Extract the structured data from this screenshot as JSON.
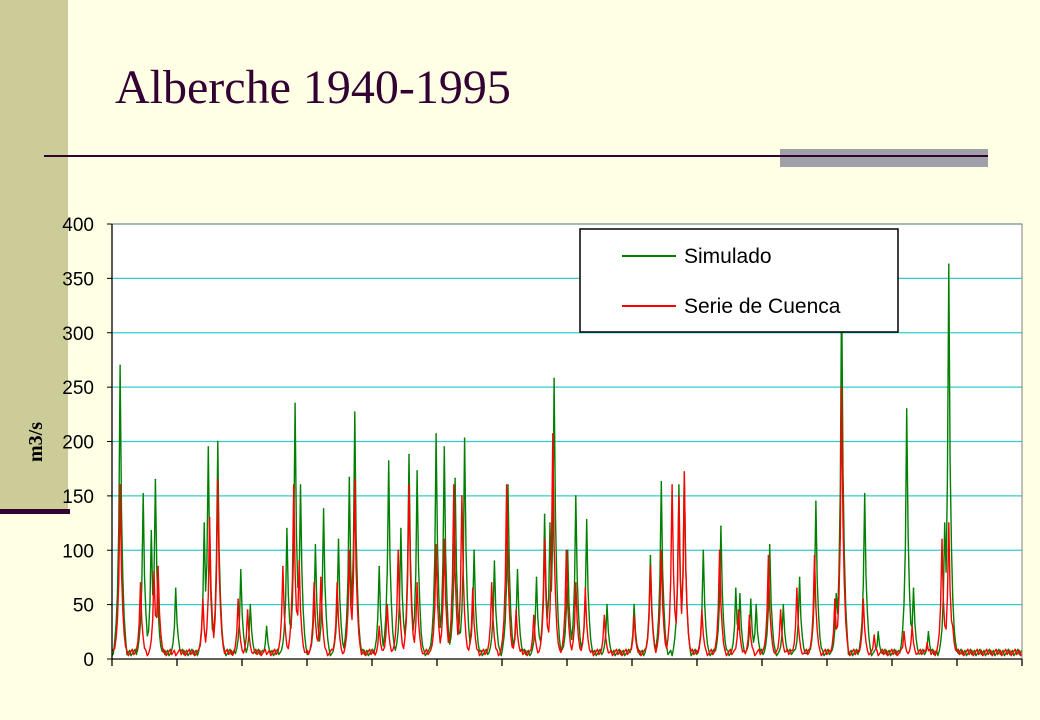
{
  "slide": {
    "title": "Alberche 1940-1995",
    "colors": {
      "background": "#ffffe5",
      "side_band": "#cccc99",
      "title": "#330033",
      "accent_bar": "#a0a0a8"
    }
  },
  "chart_data": {
    "type": "line",
    "title": "Alberche 1940-1995",
    "xlabel": "",
    "ylabel": "m3/s",
    "ylim": [
      0,
      400
    ],
    "yticks": [
      0,
      50,
      100,
      150,
      200,
      250,
      300,
      350,
      400
    ],
    "x_tick_count": 14,
    "grid": true,
    "grid_color": "#33cccc",
    "legend_position": "top-right",
    "x_unit": "month",
    "x_range": [
      1,
      672
    ],
    "series": [
      {
        "name": "Simulado",
        "color": "#008000",
        "peaks": [
          [
            7,
            270
          ],
          [
            24,
            152
          ],
          [
            30,
            118
          ],
          [
            33,
            165
          ],
          [
            48,
            65
          ],
          [
            69,
            125
          ],
          [
            72,
            195
          ],
          [
            79,
            200
          ],
          [
            96,
            82
          ],
          [
            103,
            50
          ],
          [
            115,
            30
          ],
          [
            130,
            120
          ],
          [
            136,
            235
          ],
          [
            140,
            160
          ],
          [
            151,
            105
          ],
          [
            157,
            138
          ],
          [
            168,
            110
          ],
          [
            176,
            167
          ],
          [
            180,
            227
          ],
          [
            198,
            85
          ],
          [
            205,
            182
          ],
          [
            214,
            120
          ],
          [
            220,
            188
          ],
          [
            226,
            173
          ],
          [
            240,
            207
          ],
          [
            246,
            195
          ],
          [
            254,
            166
          ],
          [
            261,
            203
          ],
          [
            268,
            100
          ],
          [
            283,
            90
          ],
          [
            293,
            160
          ],
          [
            300,
            82
          ],
          [
            314,
            75
          ],
          [
            320,
            133
          ],
          [
            324,
            125
          ],
          [
            327,
            258
          ],
          [
            337,
            100
          ],
          [
            343,
            150
          ],
          [
            351,
            128
          ],
          [
            366,
            50
          ],
          [
            386,
            50
          ],
          [
            398,
            95
          ],
          [
            406,
            163
          ],
          [
            419,
            160
          ],
          [
            423,
            170
          ],
          [
            437,
            100
          ],
          [
            450,
            122
          ],
          [
            461,
            65
          ],
          [
            464,
            60
          ],
          [
            472,
            55
          ],
          [
            476,
            50
          ],
          [
            486,
            105
          ],
          [
            496,
            50
          ],
          [
            508,
            75
          ],
          [
            520,
            145
          ],
          [
            535,
            60
          ],
          [
            539,
            348
          ],
          [
            556,
            152
          ],
          [
            566,
            25
          ],
          [
            584,
            25
          ],
          [
            587,
            230
          ],
          [
            592,
            65
          ],
          [
            603,
            25
          ],
          [
            615,
            125
          ],
          [
            618,
            363
          ],
          [
            621,
            55
          ]
        ]
      },
      {
        "name": "Serie de Cuenca",
        "color": "#ff0000",
        "peaks": [
          [
            7,
            160
          ],
          [
            22,
            70
          ],
          [
            32,
            80
          ],
          [
            35,
            85
          ],
          [
            68,
            55
          ],
          [
            73,
            130
          ],
          [
            79,
            165
          ],
          [
            94,
            55
          ],
          [
            101,
            45
          ],
          [
            127,
            85
          ],
          [
            135,
            160
          ],
          [
            139,
            90
          ],
          [
            150,
            70
          ],
          [
            155,
            75
          ],
          [
            167,
            70
          ],
          [
            176,
            100
          ],
          [
            180,
            165
          ],
          [
            198,
            30
          ],
          [
            204,
            50
          ],
          [
            212,
            100
          ],
          [
            220,
            160
          ],
          [
            226,
            70
          ],
          [
            240,
            105
          ],
          [
            246,
            110
          ],
          [
            253,
            160
          ],
          [
            259,
            150
          ],
          [
            267,
            65
          ],
          [
            281,
            70
          ],
          [
            292,
            160
          ],
          [
            299,
            45
          ],
          [
            312,
            40
          ],
          [
            320,
            110
          ],
          [
            326,
            207
          ],
          [
            336,
            100
          ],
          [
            343,
            70
          ],
          [
            350,
            65
          ],
          [
            364,
            40
          ],
          [
            386,
            40
          ],
          [
            398,
            85
          ],
          [
            406,
            100
          ],
          [
            414,
            160
          ],
          [
            419,
            150
          ],
          [
            423,
            172
          ],
          [
            436,
            45
          ],
          [
            449,
            100
          ],
          [
            463,
            45
          ],
          [
            471,
            40
          ],
          [
            485,
            95
          ],
          [
            494,
            45
          ],
          [
            506,
            65
          ],
          [
            519,
            95
          ],
          [
            534,
            55
          ],
          [
            539,
            250
          ],
          [
            555,
            55
          ],
          [
            563,
            22
          ],
          [
            585,
            25
          ],
          [
            591,
            30
          ],
          [
            602,
            15
          ],
          [
            613,
            110
          ],
          [
            618,
            125
          ],
          [
            621,
            30
          ]
        ]
      }
    ]
  }
}
